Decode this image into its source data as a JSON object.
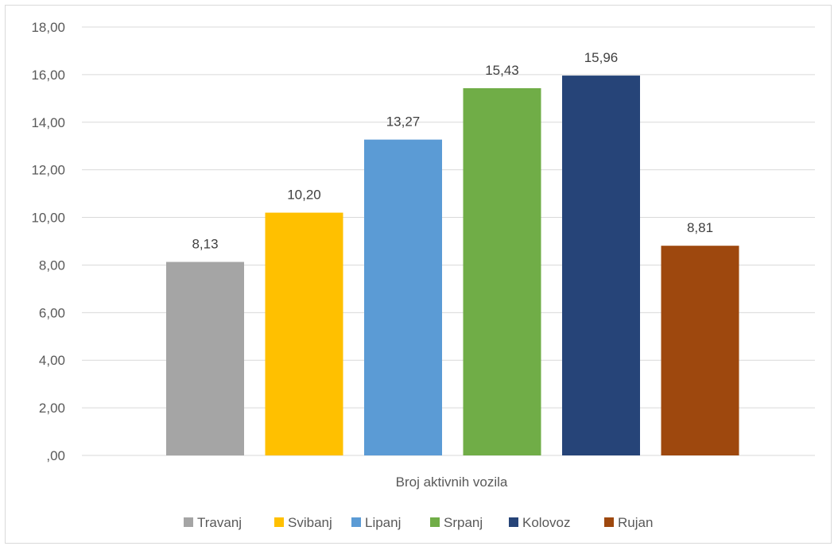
{
  "chart_data": {
    "type": "bar",
    "title": "",
    "xlabel": "",
    "ylabel": "",
    "category_label": "Broj aktivnih vozila",
    "ylim": [
      0,
      18
    ],
    "ytick_step": 2,
    "yticks": [
      ",00",
      "2,00",
      "4,00",
      "6,00",
      "8,00",
      "10,00",
      "12,00",
      "14,00",
      "16,00",
      "18,00"
    ],
    "grid": true,
    "legend_position": "bottom",
    "series": [
      {
        "name": "Travanj",
        "value": 8.13,
        "label": "8,13",
        "color": "#a5a5a5"
      },
      {
        "name": "Svibanj",
        "value": 10.2,
        "label": "10,20",
        "color": "#ffc000"
      },
      {
        "name": "Lipanj",
        "value": 13.27,
        "label": "13,27",
        "color": "#5b9bd5"
      },
      {
        "name": "Srpanj",
        "value": 15.43,
        "label": "15,43",
        "color": "#70ad47"
      },
      {
        "name": "Kolovoz",
        "value": 15.96,
        "label": "15,96",
        "color": "#264478"
      },
      {
        "name": "Rujan",
        "value": 8.81,
        "label": "8,81",
        "color": "#9e480e"
      }
    ]
  }
}
